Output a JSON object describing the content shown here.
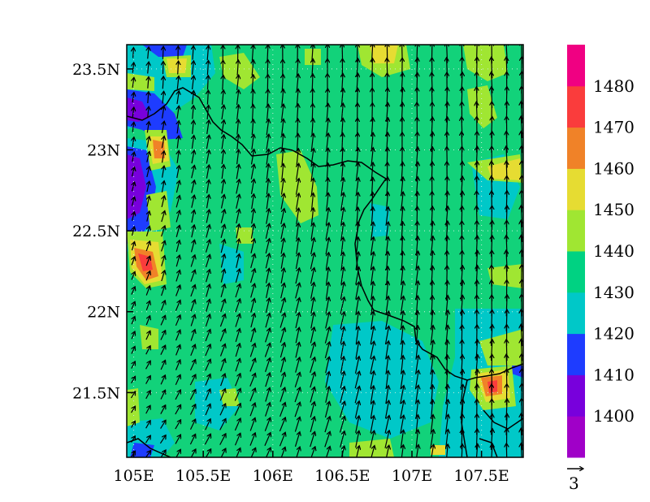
{
  "map": {
    "lon_range": [
      104.95,
      107.8
    ],
    "lat_range": [
      21.1,
      23.65
    ],
    "x_ticks": [
      {
        "value": 105.0,
        "label": "105E"
      },
      {
        "value": 105.5,
        "label": "105.5E"
      },
      {
        "value": 106.0,
        "label": "106E"
      },
      {
        "value": 106.5,
        "label": "106.5E"
      },
      {
        "value": 107.0,
        "label": "107E"
      },
      {
        "value": 107.5,
        "label": "107.5E"
      }
    ],
    "y_ticks": [
      {
        "value": 23.5,
        "label": "23.5N"
      },
      {
        "value": 23.0,
        "label": "23N"
      },
      {
        "value": 22.5,
        "label": "22.5N"
      },
      {
        "value": 22.0,
        "label": "22N"
      },
      {
        "value": 21.5,
        "label": "21.5N"
      }
    ],
    "grid": "dotted",
    "background_level_color": "#12d27a",
    "wind_vectors": "southerly flow, stronger toward the east",
    "reference_vector_label": "3"
  },
  "colorbar": {
    "placement": "right",
    "colors": [
      "#a000c8",
      "#7800dc",
      "#1e3cff",
      "#00c8c8",
      "#00d282",
      "#a0e632",
      "#e6dc32",
      "#f08228",
      "#fa3c3c",
      "#f00082"
    ],
    "labels": [
      "1400",
      "1410",
      "1420",
      "1430",
      "1440",
      "1450",
      "1460",
      "1470",
      "1480"
    ]
  }
}
